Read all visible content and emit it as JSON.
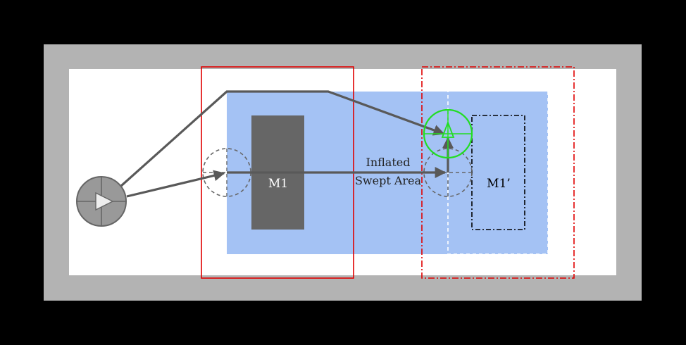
{
  "labels": {
    "obstacle_original": "M1",
    "obstacle_moved": "M1’",
    "swept_area_line1": "Inflated",
    "swept_area_line2": "Swept Area"
  },
  "colors": {
    "background": "#000000",
    "outer_border": "#b3b3b3",
    "inner_area": "#ffffff",
    "swept_area": "#a4c2f4",
    "obstacle": "#666666",
    "path": "#595959",
    "robot_start": "#999999",
    "ghost_circle": "#666666",
    "original_frame": "#e00000",
    "moved_frame": "#e00000",
    "goal_circle": "#22dd22"
  },
  "icons": {
    "robot_start": "robot-play-icon",
    "goal": "goal-crosshair-icon"
  }
}
